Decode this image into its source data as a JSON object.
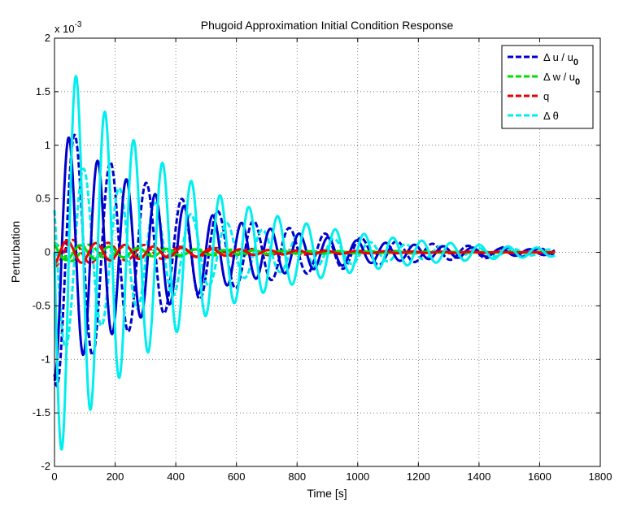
{
  "chart_data": {
    "type": "line",
    "title": "Phugoid Approximation Initial Condition Response",
    "xlabel": "Time [s]",
    "ylabel": "Perturbation",
    "y_exponent_label": "x 10",
    "y_exponent_power": "-3",
    "xlim": [
      0,
      1800
    ],
    "ylim": [
      -0.002,
      0.002
    ],
    "xticks": [
      0,
      200,
      400,
      600,
      800,
      1000,
      1200,
      1400,
      1600,
      1800
    ],
    "yticks": [
      -0.002,
      -0.0015,
      -0.001,
      -0.0005,
      0,
      0.0005,
      0.001,
      0.0015,
      0.002
    ],
    "xtick_labels": [
      "0",
      "200",
      "400",
      "600",
      "800",
      "1000",
      "1200",
      "1400",
      "1600",
      "1800"
    ],
    "ytick_labels": [
      "-2",
      "-1.5",
      "-1",
      "-0.5",
      "0",
      "0.5",
      "1",
      "1.5",
      "2"
    ],
    "grid": true,
    "legend_position": "top-right",
    "legend": [
      {
        "label": "Δ u / u",
        "subscript": "0",
        "color": "#0000cc",
        "style": "dashed"
      },
      {
        "label": "Δ w / u",
        "subscript": "0",
        "color": "#00dd00",
        "style": "dashed"
      },
      {
        "label": "q",
        "subscript": "",
        "color": "#ee0000",
        "style": "dashed"
      },
      {
        "label": "Δ θ",
        "subscript": "",
        "color": "#00eeee",
        "style": "dashed"
      }
    ],
    "series": [
      {
        "name": "Δ u / u0",
        "color": "#0000cc",
        "style": "dashed",
        "x0": 0,
        "x_end": 1650,
        "amplitude": 0.00125,
        "decay_time": 450,
        "period": 118,
        "phase": 3.14,
        "offset_shift": 8
      },
      {
        "name": "Δ w / u0",
        "color": "#00dd00",
        "style": "dashed",
        "x0": 0,
        "x_end": 1650,
        "amplitude": 9e-05,
        "decay_time": 450,
        "period": 118,
        "phase": 0.6,
        "offset_shift": 8
      },
      {
        "name": "q",
        "color": "#ee0000",
        "style": "dashed",
        "x0": 0,
        "x_end": 1650,
        "amplitude": 0.00013,
        "decay_time": 450,
        "period": 118,
        "phase": 3.5,
        "offset_shift": 8
      },
      {
        "name": "Δ θ",
        "color": "#00eeee",
        "style": "dashed",
        "x0": 0,
        "x_end": 1650,
        "amplitude": 0.00095,
        "decay_time": 450,
        "period": 118,
        "phase": 1.57,
        "offset_shift": 8
      },
      {
        "name": "",
        "color": "#0000cc",
        "style": "solid",
        "x0": 0,
        "x_end": 1650,
        "amplitude": 0.0012,
        "decay_time": 420,
        "period": 95,
        "phase": 3.14,
        "offset_shift": 0
      },
      {
        "name": "",
        "color": "#00dd00",
        "style": "solid",
        "x0": 0,
        "x_end": 1650,
        "amplitude": 8e-05,
        "decay_time": 420,
        "period": 95,
        "phase": 0.6,
        "offset_shift": 0
      },
      {
        "name": "",
        "color": "#ee0000",
        "style": "solid",
        "x0": 0,
        "x_end": 1650,
        "amplitude": 0.00012,
        "decay_time": 420,
        "period": 95,
        "phase": 3.5,
        "offset_shift": 0
      },
      {
        "name": "",
        "color": "#00eeee",
        "style": "solid",
        "x0": 0,
        "x_end": 1650,
        "amplitude": 0.00195,
        "decay_time": 420,
        "period": 95,
        "phase": 1.57,
        "offset_shift": 0
      }
    ]
  }
}
